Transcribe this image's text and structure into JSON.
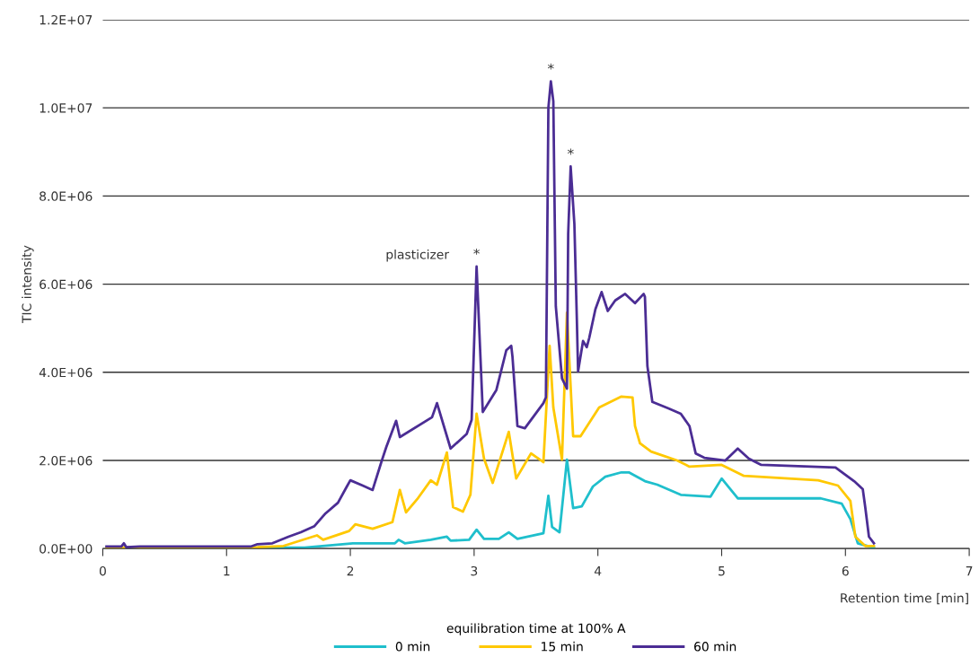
{
  "chart_data": {
    "type": "line",
    "xlabel": "Retention time [min]",
    "ylabel": "TIC intensity",
    "legend_title": "equilibration time at 100% A",
    "legend": "bottom",
    "grid": "y",
    "marker": "none",
    "line_style": "solid",
    "xlim": [
      0,
      7
    ],
    "xticks": [
      0,
      1,
      2,
      3,
      4,
      5,
      6,
      7
    ],
    "ylim": [
      0,
      12000000.0
    ],
    "yticks": [
      {
        "value": 0,
        "label": "0.0E+00"
      },
      {
        "value": 2000000.0,
        "label": "2.0E+06"
      },
      {
        "value": 4000000.0,
        "label": "4.0E+06"
      },
      {
        "value": 6000000.0,
        "label": "6.0E+06"
      },
      {
        "value": 8000000.0,
        "label": "8.0E+06"
      },
      {
        "value": 10000000.0,
        "label": "1.0E+07"
      },
      {
        "value": 12000000.0,
        "label": "1.2E+07"
      }
    ],
    "annotations": [
      {
        "text": "plasticizer",
        "x": 3.02,
        "y": 6400000.0
      },
      {
        "text": "*",
        "x": 3.02,
        "y": 6400000.0
      },
      {
        "text": "*",
        "x": 3.62,
        "y": 10600000.0
      },
      {
        "text": "*",
        "x": 3.78,
        "y": 8670000.0
      }
    ],
    "series": [
      {
        "name": "0 min",
        "color": "#1fbfcc",
        "x": [
          0.03,
          1.2,
          1.63,
          2.02,
          2.36,
          2.39,
          2.44,
          2.65,
          2.78,
          2.81,
          2.96,
          3.02,
          3.08,
          3.2,
          3.28,
          3.35,
          3.56,
          3.6,
          3.63,
          3.69,
          3.75,
          3.8,
          3.87,
          3.96,
          4.06,
          4.19,
          4.25,
          4.38,
          4.48,
          4.67,
          4.91,
          5.0,
          5.13,
          5.8,
          5.97,
          6.04,
          6.1,
          6.23
        ],
        "values": [
          20000.0,
          20000.0,
          20000.0,
          120000.0,
          120000.0,
          200000.0,
          120000.0,
          200000.0,
          270000.0,
          180000.0,
          200000.0,
          430000.0,
          220000.0,
          220000.0,
          370000.0,
          220000.0,
          350000.0,
          1200000.0,
          490000.0,
          370000.0,
          2020000.0,
          920000.0,
          960000.0,
          1410000.0,
          1630000.0,
          1730000.0,
          1730000.0,
          1530000.0,
          1450000.0,
          1220000.0,
          1180000.0,
          1590000.0,
          1140000.0,
          1140000.0,
          1020000.0,
          670000.0,
          120000.0,
          20000.0
        ]
      },
      {
        "name": "15 min",
        "color": "#ffc800",
        "x": [
          0.03,
          1.25,
          1.46,
          1.73,
          1.78,
          1.99,
          2.04,
          2.18,
          2.34,
          2.4,
          2.45,
          2.54,
          2.65,
          2.7,
          2.78,
          2.83,
          2.91,
          2.97,
          3.02,
          3.08,
          3.15,
          3.28,
          3.34,
          3.46,
          3.56,
          3.61,
          3.64,
          3.71,
          3.75,
          3.8,
          3.86,
          4.01,
          4.19,
          4.28,
          4.3,
          4.34,
          4.43,
          4.64,
          4.74,
          5.0,
          5.18,
          5.78,
          5.94,
          6.04,
          6.08,
          6.16,
          6.23
        ],
        "values": [
          20000.0,
          30000.0,
          60000.0,
          300000.0,
          200000.0,
          400000.0,
          550000.0,
          450000.0,
          600000.0,
          1330000.0,
          820000.0,
          1120000.0,
          1550000.0,
          1450000.0,
          2180000.0,
          940000.0,
          840000.0,
          1220000.0,
          3060000.0,
          2040000.0,
          1490000.0,
          2650000.0,
          1590000.0,
          2160000.0,
          1960000.0,
          4600000.0,
          3200000.0,
          2020000.0,
          5350000.0,
          2550000.0,
          2550000.0,
          3200000.0,
          3450000.0,
          3430000.0,
          2780000.0,
          2390000.0,
          2200000.0,
          2000000.0,
          1860000.0,
          1900000.0,
          1650000.0,
          1550000.0,
          1430000.0,
          1080000.0,
          270000.0,
          60000.0,
          60000.0
        ]
      },
      {
        "name": "60 min",
        "color": "#4b2d94",
        "x": [
          0.03,
          0.15,
          0.17,
          0.19,
          0.3,
          1.2,
          1.25,
          1.37,
          1.5,
          1.6,
          1.71,
          1.8,
          1.9,
          1.97,
          2.0,
          2.1,
          2.18,
          2.25,
          2.29,
          2.37,
          2.4,
          2.66,
          2.7,
          2.81,
          2.94,
          2.98,
          3.02,
          3.07,
          3.18,
          3.26,
          3.3,
          3.31,
          3.35,
          3.41,
          3.56,
          3.58,
          3.6,
          3.62,
          3.64,
          3.66,
          3.71,
          3.75,
          3.76,
          3.78,
          3.81,
          3.83,
          3.84,
          3.88,
          3.91,
          3.93,
          3.98,
          4.03,
          4.08,
          4.14,
          4.22,
          4.3,
          4.37,
          4.38,
          4.4,
          4.44,
          4.57,
          4.67,
          4.74,
          4.79,
          4.86,
          5.03,
          5.13,
          5.22,
          5.32,
          5.92,
          6.07,
          6.14,
          6.16,
          6.19,
          6.23
        ],
        "values": [
          50000.0,
          50000.0,
          120000.0,
          30000.0,
          50000.0,
          50000.0,
          100000.0,
          120000.0,
          270000.0,
          370000.0,
          510000.0,
          800000.0,
          1040000.0,
          1400000.0,
          1550000.0,
          1430000.0,
          1330000.0,
          1960000.0,
          2300000.0,
          2900000.0,
          2530000.0,
          2980000.0,
          3300000.0,
          2270000.0,
          2600000.0,
          2920000.0,
          6400000.0,
          3100000.0,
          3600000.0,
          4500000.0,
          4600000.0,
          4350000.0,
          2780000.0,
          2730000.0,
          3300000.0,
          3430000.0,
          10000000.0,
          10600000.0,
          10150000.0,
          5500000.0,
          3860000.0,
          3630000.0,
          7140000.0,
          8670000.0,
          7370000.0,
          5200000.0,
          4020000.0,
          4710000.0,
          4570000.0,
          4780000.0,
          5430000.0,
          5820000.0,
          5390000.0,
          5630000.0,
          5780000.0,
          5570000.0,
          5780000.0,
          5710000.0,
          4140000.0,
          3330000.0,
          3180000.0,
          3060000.0,
          2780000.0,
          2160000.0,
          2060000.0,
          2000000.0,
          2270000.0,
          2040000.0,
          1900000.0,
          1840000.0,
          1530000.0,
          1350000.0,
          940000.0,
          270000.0,
          120000.0
        ]
      }
    ]
  }
}
